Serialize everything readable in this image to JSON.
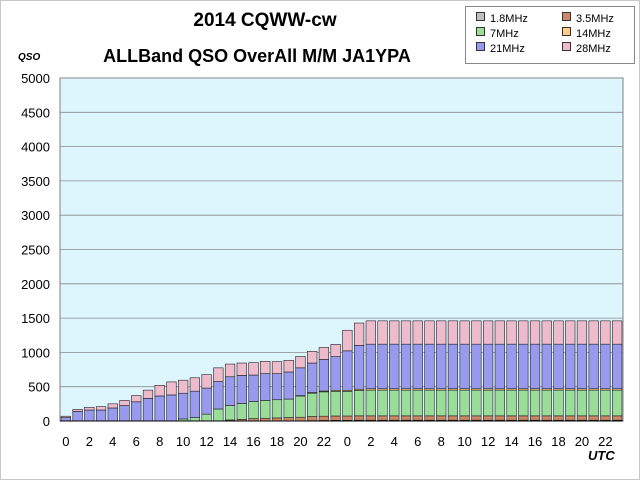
{
  "title_line1": "2014 CQWW-cw",
  "title_line2": "ALLBand QSO OverAll M/M JA1YPA",
  "chart_data": {
    "type": "bar",
    "stacked": true,
    "title": "2014 CQWW-cw ALLBand QSO OverAll M/M JA1YPA",
    "xlabel": "UTC",
    "ylabel": "QSO",
    "ylim": [
      0,
      5000
    ],
    "yticks": [
      0,
      500,
      1000,
      1500,
      2000,
      2500,
      3000,
      3500,
      4000,
      4500,
      5000
    ],
    "categories": [
      "0",
      "1",
      "2",
      "3",
      "4",
      "5",
      "6",
      "7",
      "8",
      "9",
      "10",
      "11",
      "12",
      "13",
      "14",
      "15",
      "16",
      "17",
      "18",
      "19",
      "20",
      "21",
      "22",
      "23",
      "0",
      "1",
      "2",
      "3",
      "4",
      "5",
      "6",
      "7",
      "8",
      "9",
      "10",
      "11",
      "12",
      "13",
      "14",
      "15",
      "16",
      "17",
      "18",
      "19",
      "20",
      "21",
      "22",
      "23"
    ],
    "xtick_labels": [
      "0",
      "2",
      "4",
      "6",
      "8",
      "10",
      "12",
      "14",
      "16",
      "18",
      "20",
      "22",
      "0",
      "2",
      "4",
      "6",
      "8",
      "10",
      "12",
      "14",
      "16",
      "18",
      "20",
      "22"
    ],
    "grid": true,
    "legend_position": "top-right",
    "plot_background": "#ddf6fd",
    "series": [
      {
        "name": "1.8MHz",
        "color": "#c0c0c0",
        "values": [
          0,
          0,
          0,
          0,
          0,
          0,
          0,
          0,
          0,
          0,
          0,
          0,
          0,
          0,
          0,
          0,
          0,
          0,
          0,
          0,
          0,
          5,
          8,
          10,
          10,
          12,
          12,
          12,
          12,
          12,
          12,
          12,
          12,
          12,
          12,
          12,
          12,
          12,
          12,
          12,
          12,
          12,
          12,
          12,
          12,
          12,
          12,
          12
        ]
      },
      {
        "name": "3.5MHz",
        "color": "#cc8866",
        "values": [
          0,
          0,
          0,
          0,
          0,
          0,
          0,
          0,
          0,
          0,
          0,
          0,
          0,
          0,
          15,
          25,
          35,
          40,
          45,
          50,
          55,
          60,
          62,
          63,
          63,
          63,
          63,
          63,
          63,
          63,
          63,
          63,
          63,
          63,
          63,
          63,
          63,
          63,
          63,
          63,
          63,
          63,
          63,
          63,
          63,
          63,
          63,
          63
        ]
      },
      {
        "name": "7MHz",
        "color": "#99dd99",
        "values": [
          0,
          0,
          0,
          0,
          0,
          0,
          0,
          0,
          0,
          0,
          30,
          50,
          100,
          175,
          210,
          230,
          250,
          260,
          265,
          270,
          310,
          340,
          355,
          360,
          360,
          370,
          375,
          375,
          375,
          375,
          375,
          375,
          375,
          375,
          375,
          375,
          375,
          375,
          375,
          375,
          375,
          375,
          375,
          375,
          375,
          375,
          375,
          375
        ]
      },
      {
        "name": "14MHz",
        "color": "#ffcc88",
        "values": [
          0,
          0,
          0,
          0,
          0,
          0,
          0,
          0,
          0,
          0,
          0,
          0,
          0,
          0,
          0,
          0,
          0,
          0,
          0,
          0,
          5,
          10,
          12,
          15,
          15,
          18,
          20,
          20,
          20,
          20,
          20,
          20,
          20,
          20,
          20,
          20,
          20,
          20,
          20,
          20,
          20,
          20,
          20,
          20,
          20,
          20,
          20,
          20
        ]
      },
      {
        "name": "21MHz",
        "color": "#9999ee",
        "values": [
          50,
          140,
          160,
          160,
          190,
          225,
          280,
          330,
          365,
          380,
          375,
          385,
          380,
          400,
          420,
          410,
          385,
          390,
          380,
          395,
          405,
          430,
          460,
          490,
          575,
          640,
          650,
          650,
          650,
          650,
          650,
          650,
          650,
          650,
          650,
          650,
          650,
          650,
          650,
          650,
          650,
          650,
          650,
          650,
          650,
          650,
          650,
          650
        ]
      },
      {
        "name": "28MHz",
        "color": "#eebbcc",
        "values": [
          20,
          30,
          40,
          50,
          60,
          75,
          90,
          120,
          155,
          190,
          190,
          195,
          195,
          200,
          185,
          180,
          180,
          180,
          175,
          170,
          165,
          170,
          175,
          180,
          300,
          325,
          340,
          340,
          340,
          340,
          340,
          340,
          340,
          340,
          340,
          340,
          340,
          340,
          340,
          340,
          340,
          340,
          340,
          340,
          340,
          340,
          340,
          340
        ]
      }
    ]
  }
}
